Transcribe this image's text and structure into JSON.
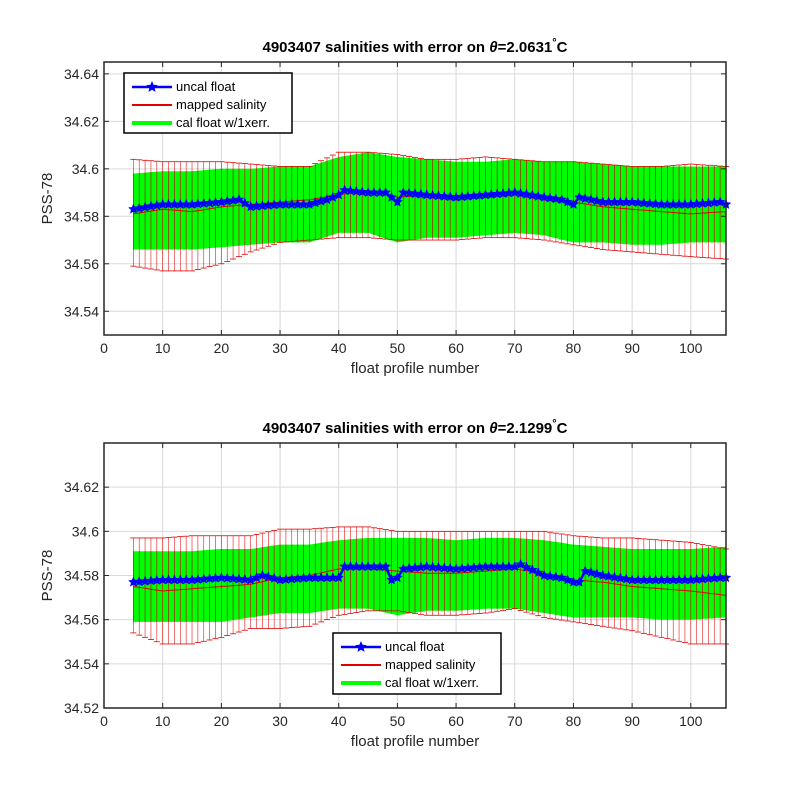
{
  "colors": {
    "uncal": "#0000ff",
    "mapped": "#e00000",
    "cal_fill": "#00ff00",
    "grid": "#d9d9d9",
    "axes": "#262626"
  },
  "chart_data": [
    {
      "type": "line",
      "title_prefix": "4903407 salinities with error on ",
      "title_theta": "θ",
      "title_suffix": "=2.0631",
      "title_degree": "°",
      "title_unit": "C",
      "xlabel": "float profile number",
      "ylabel": "PSS-78",
      "xlim": [
        0,
        106
      ],
      "ylim": [
        34.53,
        34.645
      ],
      "xticks": [
        0,
        10,
        20,
        30,
        40,
        50,
        60,
        70,
        80,
        90,
        100
      ],
      "yticks": [
        34.54,
        34.56,
        34.58,
        34.6,
        34.62,
        34.64
      ],
      "ytick_labels": [
        "34.54",
        "34.56",
        "34.58",
        "34.6",
        "34.62",
        "34.64"
      ],
      "grid": true,
      "legend_position": "top-left",
      "legend": [
        "uncal float",
        "mapped salinity",
        "cal float w/1xerr."
      ],
      "series": [
        {
          "name": "uncal float",
          "x": [
            5,
            10,
            15,
            20,
            23,
            25,
            30,
            35,
            38,
            40,
            41,
            45,
            48,
            50,
            51,
            55,
            60,
            65,
            70,
            75,
            78,
            80,
            81,
            85,
            90,
            95,
            100,
            105,
            106
          ],
          "y": [
            34.583,
            34.585,
            34.585,
            34.586,
            34.587,
            34.584,
            34.585,
            34.585,
            34.587,
            34.589,
            34.591,
            34.59,
            34.59,
            34.586,
            34.59,
            34.589,
            34.588,
            34.589,
            34.59,
            34.588,
            34.587,
            34.585,
            34.588,
            34.586,
            34.586,
            34.585,
            34.585,
            34.586,
            34.585
          ]
        },
        {
          "name": "mapped salinity",
          "x": [
            5,
            10,
            15,
            20,
            25,
            30,
            35,
            40,
            45,
            50,
            55,
            60,
            65,
            70,
            75,
            80,
            85,
            90,
            95,
            100,
            106
          ],
          "y": [
            34.581,
            34.583,
            34.582,
            34.584,
            34.585,
            34.586,
            34.587,
            34.589,
            34.591,
            34.588,
            34.589,
            34.587,
            34.588,
            34.589,
            34.587,
            34.586,
            34.584,
            34.583,
            34.582,
            34.581,
            34.582
          ]
        },
        {
          "name": "cal float w/1xerr.",
          "x": [
            5,
            10,
            15,
            20,
            25,
            30,
            35,
            40,
            45,
            50,
            55,
            60,
            65,
            70,
            75,
            80,
            85,
            90,
            95,
            100,
            106
          ],
          "upper": [
            34.598,
            34.599,
            34.599,
            34.6,
            34.6,
            34.601,
            34.601,
            34.605,
            34.607,
            34.605,
            34.604,
            34.603,
            34.603,
            34.604,
            34.603,
            34.603,
            34.602,
            34.601,
            34.601,
            34.601,
            34.601
          ],
          "lower": [
            34.566,
            34.566,
            34.566,
            34.567,
            34.568,
            34.569,
            34.569,
            34.573,
            34.573,
            34.569,
            34.571,
            34.571,
            34.572,
            34.573,
            34.572,
            34.569,
            34.569,
            34.568,
            34.568,
            34.569,
            34.569
          ]
        }
      ],
      "error_bars": {
        "x": [
          5,
          10,
          15,
          20,
          25,
          30,
          35,
          40,
          45,
          50,
          55,
          60,
          65,
          70,
          75,
          80,
          85,
          90,
          95,
          100,
          106
        ],
        "upper": [
          34.604,
          34.603,
          34.603,
          34.603,
          34.602,
          34.601,
          34.601,
          34.607,
          34.607,
          34.606,
          34.604,
          34.604,
          34.605,
          34.604,
          34.603,
          34.603,
          34.602,
          34.601,
          34.601,
          34.602,
          34.601
        ],
        "lower": [
          34.559,
          34.557,
          34.557,
          34.56,
          34.565,
          34.569,
          34.57,
          34.571,
          34.571,
          34.57,
          34.57,
          34.57,
          34.571,
          34.571,
          34.57,
          34.568,
          34.566,
          34.565,
          34.564,
          34.563,
          34.562
        ]
      }
    },
    {
      "type": "line",
      "title_prefix": "4903407 salinities with error on ",
      "title_theta": "θ",
      "title_suffix": "=2.1299",
      "title_degree": "°",
      "title_unit": "C",
      "xlabel": "float profile number",
      "ylabel": "PSS-78",
      "xlim": [
        0,
        106
      ],
      "ylim": [
        34.52,
        34.64
      ],
      "xticks": [
        0,
        10,
        20,
        30,
        40,
        50,
        60,
        70,
        80,
        90,
        100
      ],
      "yticks": [
        34.52,
        34.54,
        34.56,
        34.58,
        34.6,
        34.62
      ],
      "ytick_labels": [
        "34.52",
        "34.54",
        "34.56",
        "34.58",
        "34.6",
        "34.62"
      ],
      "grid": true,
      "legend_position": "bottom-center",
      "legend": [
        "uncal float",
        "mapped salinity",
        "cal float w/1xerr."
      ],
      "series": [
        {
          "name": "uncal float",
          "x": [
            5,
            10,
            15,
            20,
            25,
            27,
            30,
            35,
            40,
            41,
            45,
            48,
            49,
            50,
            51,
            55,
            60,
            65,
            70,
            71,
            75,
            78,
            80,
            81,
            82,
            85,
            90,
            95,
            100,
            105,
            106
          ],
          "y": [
            34.577,
            34.578,
            34.578,
            34.579,
            34.578,
            34.58,
            34.578,
            34.579,
            34.579,
            34.584,
            34.584,
            34.584,
            34.578,
            34.579,
            34.583,
            34.584,
            34.583,
            34.584,
            34.584,
            34.585,
            34.58,
            34.579,
            34.577,
            34.577,
            34.582,
            34.58,
            34.578,
            34.578,
            34.578,
            34.579,
            34.579
          ]
        },
        {
          "name": "mapped salinity",
          "x": [
            5,
            10,
            15,
            20,
            25,
            30,
            35,
            40,
            45,
            50,
            55,
            60,
            65,
            70,
            75,
            80,
            85,
            90,
            95,
            100,
            106
          ],
          "y": [
            34.575,
            34.573,
            34.574,
            34.575,
            34.576,
            34.579,
            34.58,
            34.583,
            34.583,
            34.582,
            34.581,
            34.581,
            34.582,
            34.583,
            34.581,
            34.578,
            34.577,
            34.575,
            34.574,
            34.573,
            34.571
          ]
        },
        {
          "name": "cal float w/1xerr.",
          "x": [
            5,
            10,
            15,
            20,
            25,
            30,
            35,
            40,
            45,
            50,
            55,
            60,
            65,
            70,
            75,
            80,
            85,
            90,
            95,
            100,
            106
          ],
          "upper": [
            34.591,
            34.591,
            34.591,
            34.592,
            34.592,
            34.594,
            34.594,
            34.596,
            34.597,
            34.597,
            34.597,
            34.596,
            34.597,
            34.597,
            34.596,
            34.594,
            34.593,
            34.592,
            34.592,
            34.592,
            34.593
          ],
          "lower": [
            34.559,
            34.559,
            34.559,
            34.559,
            34.561,
            34.563,
            34.563,
            34.565,
            34.565,
            34.562,
            34.564,
            34.564,
            34.565,
            34.565,
            34.563,
            34.561,
            34.561,
            34.561,
            34.56,
            34.56,
            34.561
          ]
        }
      ],
      "error_bars": {
        "x": [
          5,
          10,
          15,
          20,
          25,
          30,
          35,
          40,
          45,
          50,
          55,
          60,
          65,
          70,
          75,
          80,
          85,
          90,
          95,
          100,
          106
        ],
        "upper": [
          34.597,
          34.597,
          34.598,
          34.598,
          34.598,
          34.601,
          34.601,
          34.602,
          34.602,
          34.6,
          34.6,
          34.6,
          34.6,
          34.6,
          34.6,
          34.598,
          34.597,
          34.597,
          34.596,
          34.595,
          34.592
        ],
        "lower": [
          34.554,
          34.549,
          34.549,
          34.552,
          34.556,
          34.556,
          34.557,
          34.562,
          34.564,
          34.564,
          34.562,
          34.562,
          34.563,
          34.565,
          34.561,
          34.559,
          34.557,
          34.555,
          34.552,
          34.549,
          34.549
        ]
      }
    }
  ]
}
